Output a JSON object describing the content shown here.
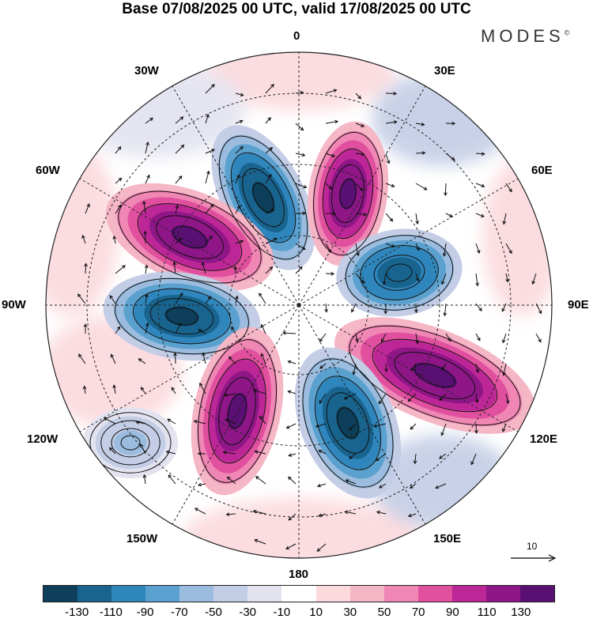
{
  "title": "Base 07/08/2025 00 UTC, valid 17/08/2025 00 UTC",
  "logo": "MODES",
  "logo_mark": "©",
  "longitude_labels": {
    "deg_0": "0",
    "deg_30e": "30E",
    "deg_60e": "60E",
    "deg_90e": "90E",
    "deg_120e": "120E",
    "deg_150e": "150E",
    "deg_180": "180",
    "deg_150w": "150W",
    "deg_120w": "120W",
    "deg_90w": "90W",
    "deg_60w": "60W",
    "deg_30w": "30W"
  },
  "reference_vector": {
    "label": "10"
  },
  "colorbar": {
    "colors": [
      "#0d3f5a",
      "#19648f",
      "#2f86bd",
      "#5aa1cf",
      "#9bbcde",
      "#c4cde6",
      "#e3e3f0",
      "#ffffff",
      "#fbd9dd",
      "#f5b6c6",
      "#ef86b4",
      "#e1509f",
      "#bd2696",
      "#8e1687",
      "#5a0f72"
    ],
    "ticks": [
      "-130",
      "-110",
      "-90",
      "-70",
      "-50",
      "-30",
      "-10",
      "10",
      "30",
      "50",
      "70",
      "90",
      "110",
      "130"
    ]
  },
  "anomalies": [
    {
      "name": "anomaly-neg-north",
      "value": -140
    },
    {
      "name": "anomaly-pos-north",
      "value": 140
    },
    {
      "name": "anomaly-pos-northwest",
      "value": 140
    },
    {
      "name": "anomaly-neg-east",
      "value": -130
    },
    {
      "name": "anomaly-neg-west",
      "value": -140
    },
    {
      "name": "anomaly-pos-southeast",
      "value": 140
    },
    {
      "name": "anomaly-pos-south",
      "value": 140
    },
    {
      "name": "anomaly-neg-south",
      "value": -140
    },
    {
      "name": "anomaly-neg-southwest",
      "value": -60
    }
  ]
}
